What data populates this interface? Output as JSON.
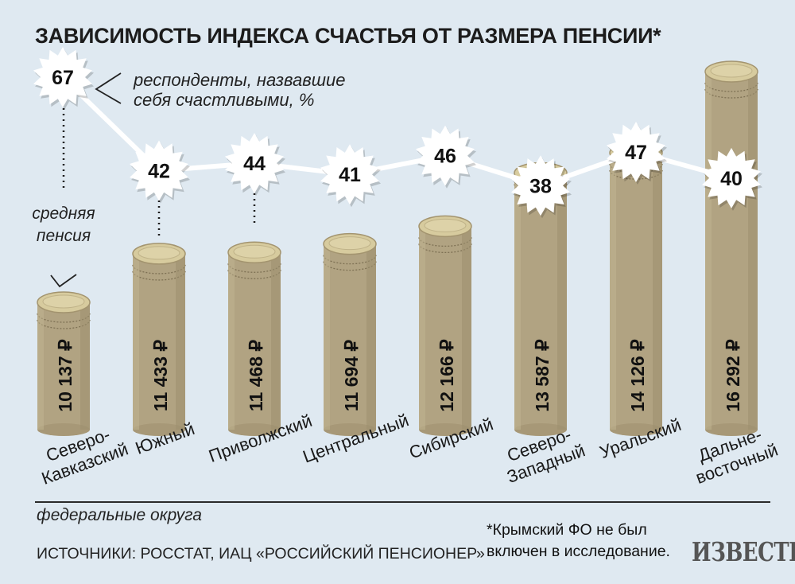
{
  "title": "ЗАВИСИМОСТЬ ИНДЕКСА СЧАСТЬЯ ОТ РАЗМЕРА ПЕНСИИ*",
  "legend": {
    "happy_line1": "респонденты, назвавшие",
    "happy_line2": "себя счастливыми, %",
    "pension_line1": "средняя",
    "pension_line2": "пенсия"
  },
  "axis_caption": "федеральные округа",
  "source": "ИСТОЧНИКИ: РОССТАТ, ИАЦ «РОССИЙСКИЙ ПЕНСИОНЕР»",
  "footnote_line1": "*Крымский ФО не был",
  "footnote_line2": "включен в исследование.",
  "logo": "ИЗВЕСТИЯ",
  "colors": {
    "background": "#dfe9f1",
    "column": "#b1a382",
    "coin_top": "#d7cb9e",
    "line": "#ffffff"
  },
  "chart_data": {
    "type": "bar",
    "categories": [
      [
        "Северо-",
        "Кавказский"
      ],
      [
        "Южный"
      ],
      [
        "Приволжский"
      ],
      [
        "Центральный"
      ],
      [
        "Сибирский"
      ],
      [
        "Северо-",
        "Западный"
      ],
      [
        "Уральский"
      ],
      [
        "Дальне-",
        "восточный"
      ]
    ],
    "series": [
      {
        "values": [
          10137,
          11433,
          11468,
          11694,
          12166,
          13587,
          14126,
          16292
        ],
        "labels": [
          "10 137 ₽",
          "11 433 ₽",
          "11 468 ₽",
          "11 694 ₽",
          "12 166 ₽",
          "13 587 ₽",
          "14 126 ₽",
          "16 292 ₽"
        ]
      },
      {
        "values": [
          67,
          42,
          44,
          41,
          46,
          38,
          47,
          40
        ]
      }
    ]
  }
}
